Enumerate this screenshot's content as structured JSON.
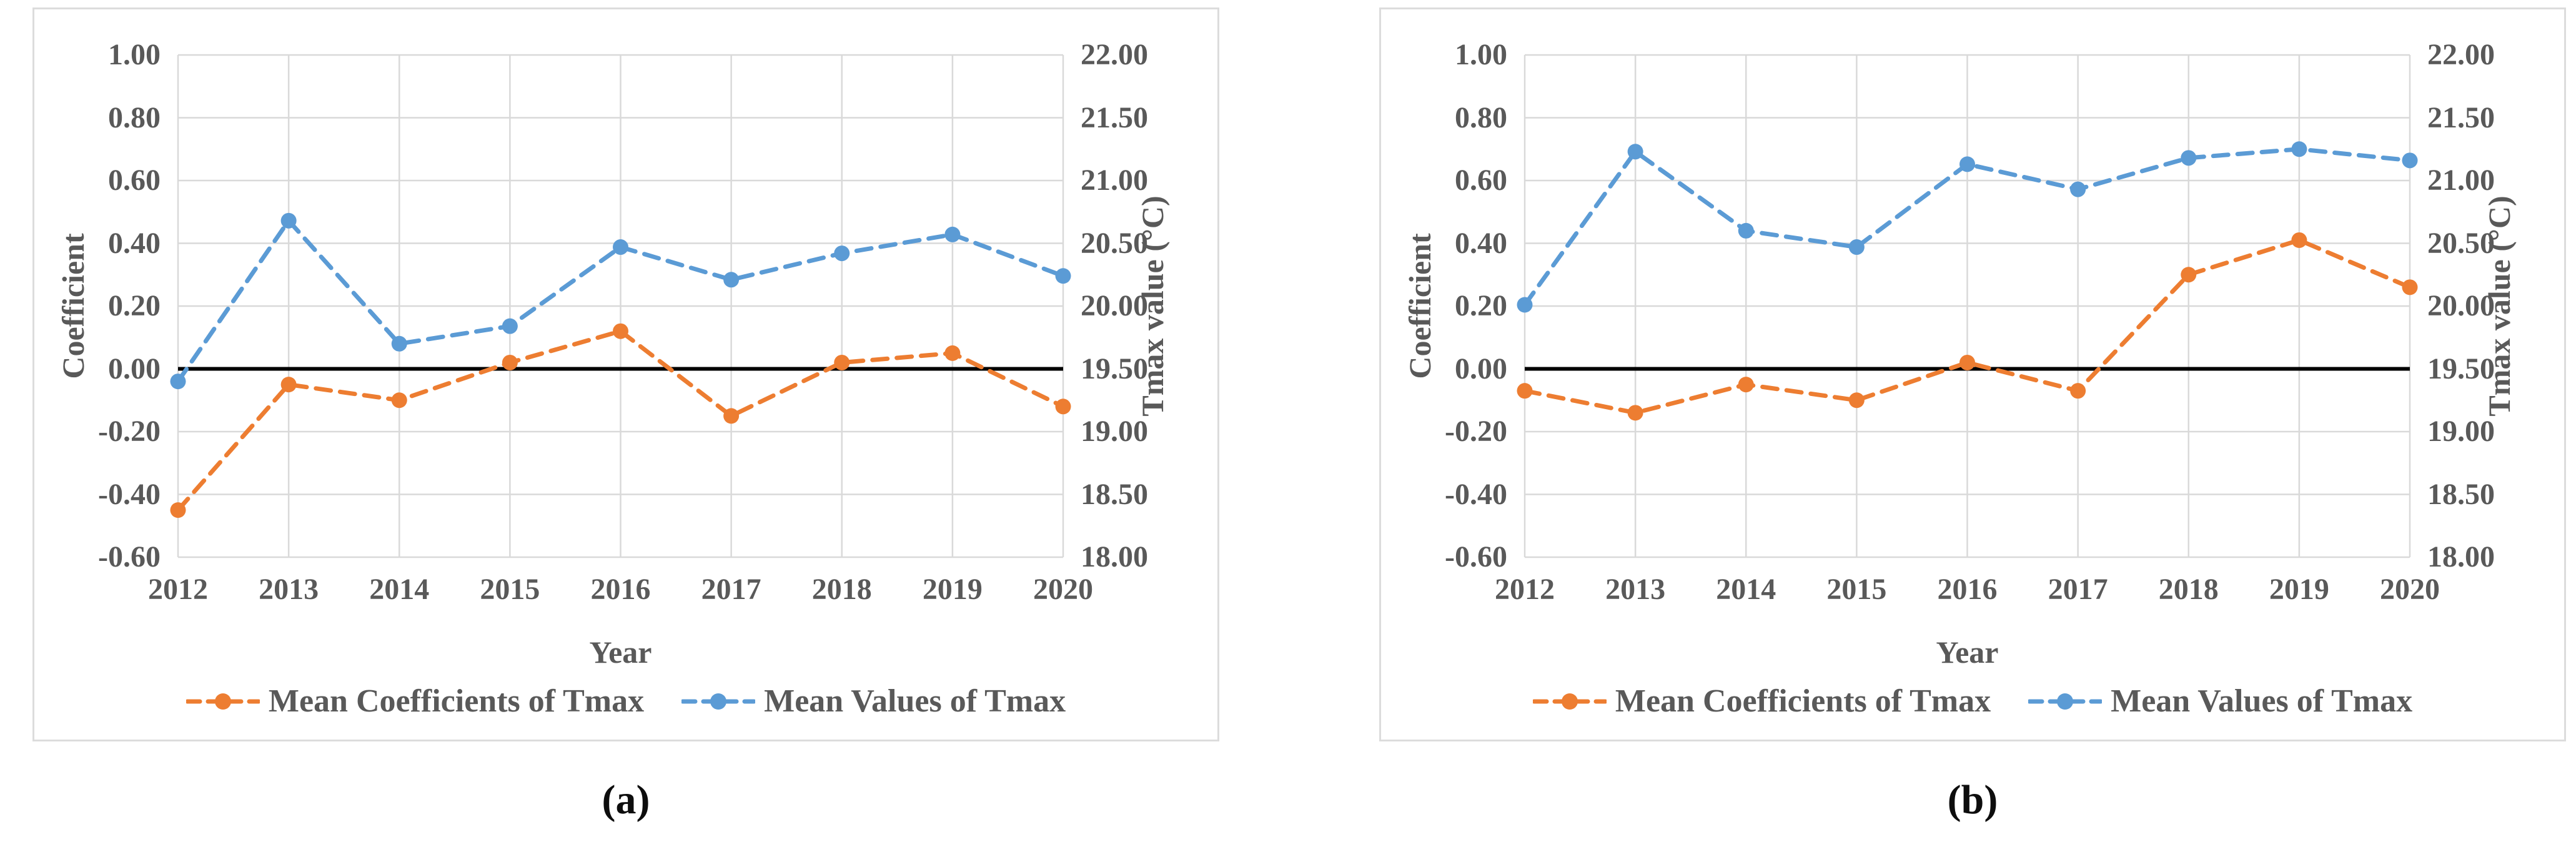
{
  "colors": {
    "coefficient_series": "#ED7D31",
    "tmax_series": "#5B9BD5",
    "gridline": "#D9D9D9",
    "zero_line": "#000000",
    "axis_text": "#595959",
    "panel_border": "#DCDCDC",
    "background": "#FFFFFF"
  },
  "chart_data": [
    {
      "id": "a",
      "type": "line",
      "caption": "(a)",
      "xlabel": "Year",
      "ylabel_left": "Coefficient",
      "ylabel_right": "Tmax value (°C)",
      "categories": [
        "2012",
        "2013",
        "2014",
        "2015",
        "2016",
        "2017",
        "2018",
        "2019",
        "2020"
      ],
      "left_ticks": [
        "1.00",
        "0.80",
        "0.60",
        "0.40",
        "0.20",
        "0.00",
        "-0.20",
        "-0.40",
        "-0.60"
      ],
      "right_ticks": [
        "22.00",
        "21.50",
        "21.00",
        "20.50",
        "20.00",
        "19.50",
        "19.00",
        "18.50",
        "18.00"
      ],
      "left_axis_range": [
        -0.6,
        1.0
      ],
      "right_axis_range": [
        18.0,
        22.0
      ],
      "grid": true,
      "legend_position": "bottom",
      "zero_reference_line": 0.0,
      "series": [
        {
          "name": "Mean Coefficients of Tmax",
          "axis": "left",
          "color": "#ED7D31",
          "style": "dashed-with-markers",
          "values": [
            -0.45,
            -0.05,
            -0.1,
            0.02,
            0.12,
            -0.15,
            0.02,
            0.05,
            -0.12
          ]
        },
        {
          "name": "Mean Values of Tmax",
          "axis": "right",
          "color": "#5B9BD5",
          "style": "dashed-with-markers",
          "values": [
            19.4,
            20.68,
            19.7,
            19.84,
            20.47,
            20.21,
            20.42,
            20.57,
            20.24
          ]
        }
      ]
    },
    {
      "id": "b",
      "type": "line",
      "caption": "(b)",
      "xlabel": "Year",
      "ylabel_left": "Coefficient",
      "ylabel_right": "Tmax value (°C)",
      "categories": [
        "2012",
        "2013",
        "2014",
        "2015",
        "2016",
        "2017",
        "2018",
        "2019",
        "2020"
      ],
      "left_ticks": [
        "1.00",
        "0.80",
        "0.60",
        "0.40",
        "0.20",
        "0.00",
        "-0.20",
        "-0.40",
        "-0.60"
      ],
      "right_ticks": [
        "22.00",
        "21.50",
        "21.00",
        "20.50",
        "20.00",
        "19.50",
        "19.00",
        "18.50",
        "18.00"
      ],
      "left_axis_range": [
        -0.6,
        1.0
      ],
      "right_axis_range": [
        18.0,
        22.0
      ],
      "grid": true,
      "legend_position": "bottom",
      "zero_reference_line": 0.0,
      "series": [
        {
          "name": "Mean Coefficients of Tmax",
          "axis": "left",
          "color": "#ED7D31",
          "style": "dashed-with-markers",
          "values": [
            -0.07,
            -0.14,
            -0.05,
            -0.1,
            0.02,
            -0.07,
            0.3,
            0.41,
            0.26
          ]
        },
        {
          "name": "Mean Values of Tmax",
          "axis": "right",
          "color": "#5B9BD5",
          "style": "dashed-with-markers",
          "values": [
            20.01,
            21.23,
            20.6,
            20.47,
            21.13,
            20.93,
            21.18,
            21.25,
            21.16
          ]
        }
      ]
    }
  ]
}
